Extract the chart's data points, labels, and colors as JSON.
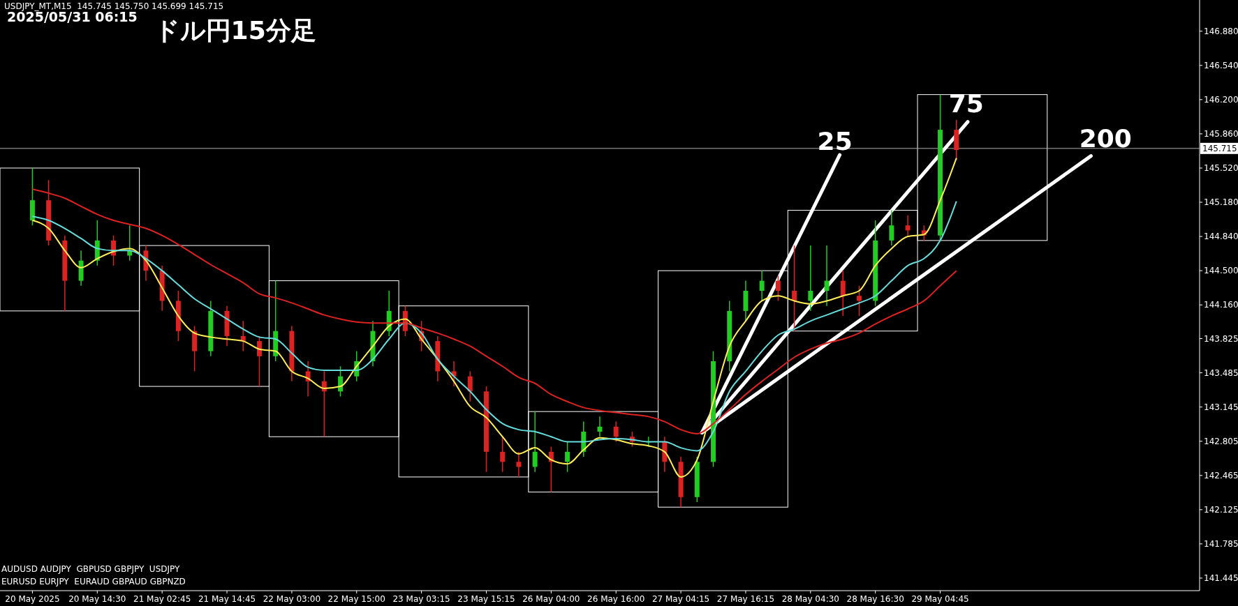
{
  "chart_data": {
    "type": "candlestick",
    "title": "ドル円15分足",
    "categories": [
      "20 May 2025",
      null,
      null,
      null,
      "20 May 14:30",
      null,
      null,
      null,
      "21 May 02:45",
      null,
      null,
      null,
      "21 May 14:45",
      null,
      null,
      null,
      "22 May 03:00",
      null,
      null,
      null,
      "22 May 15:00",
      null,
      null,
      null,
      "23 May 03:15",
      null,
      null,
      null,
      "23 May 15:15",
      null,
      null,
      null,
      "26 May 04:00",
      null,
      null,
      null,
      "26 May 16:00",
      null,
      null,
      null,
      "27 May 04:15",
      null,
      null,
      null,
      "27 May 16:15",
      null,
      null,
      null,
      "28 May 04:30",
      null,
      null,
      null,
      "28 May 16:30",
      null,
      null,
      null,
      "29 May 04:45",
      null
    ],
    "ohlc": [
      [
        145.0,
        145.52,
        144.95,
        145.2
      ],
      [
        145.2,
        145.4,
        144.75,
        144.8
      ],
      [
        144.8,
        144.85,
        144.1,
        144.4
      ],
      [
        144.4,
        144.7,
        144.35,
        144.6
      ],
      [
        144.6,
        145.0,
        144.55,
        144.8
      ],
      [
        144.8,
        144.85,
        144.55,
        144.65
      ],
      [
        144.65,
        144.95,
        144.6,
        144.7
      ],
      [
        144.7,
        144.75,
        144.4,
        144.5
      ],
      [
        144.5,
        144.55,
        144.1,
        144.2
      ],
      [
        144.2,
        144.3,
        143.8,
        143.9
      ],
      [
        143.9,
        143.95,
        143.5,
        143.7
      ],
      [
        143.7,
        144.2,
        143.65,
        144.1
      ],
      [
        144.1,
        144.15,
        143.75,
        143.85
      ],
      [
        143.85,
        144.0,
        143.7,
        143.8
      ],
      [
        143.8,
        143.85,
        143.35,
        143.65
      ],
      [
        143.65,
        144.4,
        143.6,
        143.9
      ],
      [
        143.9,
        143.95,
        143.4,
        143.5
      ],
      [
        143.5,
        143.6,
        143.25,
        143.4
      ],
      [
        143.4,
        143.5,
        142.85,
        143.3
      ],
      [
        143.3,
        143.55,
        143.25,
        143.45
      ],
      [
        143.45,
        143.7,
        143.4,
        143.6
      ],
      [
        143.6,
        144.0,
        143.55,
        143.9
      ],
      [
        143.9,
        144.3,
        143.85,
        144.1
      ],
      [
        144.1,
        144.15,
        143.85,
        143.9
      ],
      [
        143.9,
        144.0,
        143.7,
        143.8
      ],
      [
        143.8,
        143.85,
        143.4,
        143.5
      ],
      [
        143.5,
        143.6,
        143.35,
        143.45
      ],
      [
        143.45,
        143.5,
        143.2,
        143.3
      ],
      [
        143.3,
        143.35,
        142.5,
        142.7
      ],
      [
        142.7,
        142.85,
        142.5,
        142.6
      ],
      [
        142.6,
        142.7,
        142.45,
        142.55
      ],
      [
        142.55,
        143.1,
        142.5,
        142.7
      ],
      [
        142.7,
        142.75,
        142.3,
        142.6
      ],
      [
        142.6,
        142.8,
        142.5,
        142.7
      ],
      [
        142.7,
        143.0,
        142.65,
        142.9
      ],
      [
        142.9,
        143.05,
        142.85,
        142.95
      ],
      [
        142.95,
        143.0,
        142.8,
        142.85
      ],
      [
        142.85,
        142.9,
        142.75,
        142.8
      ],
      [
        142.8,
        142.85,
        142.75,
        142.8
      ],
      [
        142.8,
        142.85,
        142.5,
        142.6
      ],
      [
        142.6,
        142.65,
        142.15,
        142.25
      ],
      [
        142.25,
        142.65,
        142.2,
        142.6
      ],
      [
        142.6,
        143.7,
        142.55,
        143.6
      ],
      [
        143.6,
        144.2,
        143.5,
        144.1
      ],
      [
        144.1,
        144.4,
        144.0,
        144.3
      ],
      [
        144.3,
        144.5,
        144.2,
        144.4
      ],
      [
        144.4,
        144.45,
        144.2,
        144.3
      ],
      [
        144.3,
        144.75,
        143.9,
        144.2
      ],
      [
        144.2,
        144.75,
        144.1,
        144.3
      ],
      [
        144.3,
        144.75,
        144.15,
        144.4
      ],
      [
        144.4,
        144.5,
        144.05,
        144.25
      ],
      [
        144.25,
        144.35,
        144.05,
        144.2
      ],
      [
        144.2,
        145.0,
        144.15,
        144.8
      ],
      [
        144.8,
        145.1,
        144.75,
        144.95
      ],
      [
        144.95,
        145.05,
        144.85,
        144.9
      ],
      [
        144.9,
        144.95,
        144.8,
        144.85
      ],
      [
        144.85,
        146.25,
        144.8,
        145.9
      ],
      [
        145.9,
        146.0,
        145.6,
        145.7
      ]
    ],
    "series": [
      {
        "type": "line",
        "color": "#ffee55",
        "values": [
          145.0,
          144.92,
          144.7,
          144.53,
          144.62,
          144.69,
          144.72,
          144.6,
          144.33,
          144.05,
          143.88,
          143.84,
          143.82,
          143.8,
          143.72,
          143.7,
          143.5,
          143.43,
          143.33,
          143.35,
          143.55,
          143.75,
          143.95,
          144.02,
          143.82,
          143.62,
          143.4,
          143.15,
          143.04,
          142.85,
          142.68,
          142.74,
          142.62,
          142.58,
          142.72,
          142.84,
          142.82,
          142.78,
          142.76,
          142.7,
          142.45,
          142.62,
          143.2,
          143.75,
          144.0,
          144.2,
          144.25,
          144.2,
          144.17,
          144.2,
          144.25,
          144.3,
          144.55,
          144.72,
          144.84,
          144.86,
          145.2,
          145.62
        ]
      },
      {
        "type": "line",
        "color": "#66dddd",
        "values": [
          145.04,
          145.0,
          144.92,
          144.82,
          144.72,
          144.7,
          144.7,
          144.62,
          144.5,
          144.36,
          144.22,
          144.12,
          144.02,
          143.92,
          143.84,
          143.82,
          143.68,
          143.54,
          143.51,
          143.51,
          143.51,
          143.62,
          143.82,
          143.98,
          143.88,
          143.62,
          143.45,
          143.3,
          143.12,
          142.98,
          142.92,
          142.9,
          142.85,
          142.8,
          142.8,
          142.82,
          142.83,
          142.82,
          142.8,
          142.8,
          142.74,
          142.71,
          142.9,
          143.3,
          143.5,
          143.7,
          143.86,
          143.92,
          144.0,
          144.06,
          144.12,
          144.18,
          144.25,
          144.4,
          144.55,
          144.62,
          144.8,
          145.19
        ]
      },
      {
        "type": "line",
        "color": "#dd2222",
        "values": [
          145.31,
          145.27,
          145.22,
          145.14,
          145.06,
          145.0,
          144.96,
          144.92,
          144.85,
          144.76,
          144.66,
          144.56,
          144.47,
          144.38,
          144.27,
          144.23,
          144.18,
          144.12,
          144.06,
          144.02,
          143.99,
          143.98,
          143.98,
          143.98,
          143.93,
          143.88,
          143.82,
          143.75,
          143.65,
          143.55,
          143.44,
          143.38,
          143.27,
          143.2,
          143.14,
          143.11,
          143.09,
          143.07,
          143.05,
          143.0,
          142.92,
          142.88,
          142.98,
          143.12,
          143.27,
          143.4,
          143.52,
          143.64,
          143.72,
          143.78,
          143.82,
          143.88,
          143.97,
          144.05,
          144.12,
          144.2,
          144.35,
          144.5
        ]
      }
    ],
    "ylim": [
      141.32,
      147.19
    ],
    "yticks": [
      141.445,
      141.785,
      142.125,
      142.465,
      142.805,
      143.145,
      143.485,
      143.825,
      {
        "value": 144.16,
        "label": "144.160"
      },
      {
        "value": 144.5,
        "label": "144.500"
      },
      {
        "value": 144.84,
        "label": "144.840"
      },
      {
        "value": 145.18,
        "label": "145.180"
      },
      {
        "value": 145.52,
        "label": "145.520"
      },
      {
        "value": 145.86,
        "label": "145.860"
      },
      {
        "value": 146.2,
        "label": "146.200"
      },
      {
        "value": 146.54,
        "label": "146.540"
      },
      {
        "value": 146.88,
        "label": "146.880"
      }
    ],
    "ref_lines": [
      {
        "axis": "y",
        "value": 145.715,
        "label": "145.715",
        "color": "#aaaaaa"
      }
    ],
    "annotations": [
      "USDJPY_MT,M15  145.745 145.750 145.699 145.715",
      "2025/05/31 06:15",
      "25",
      "75",
      "200",
      "AUDUSD AUDJPY  GBPUSD GBPJPY  USDJPY",
      "EURUSD EURJPY  EURAUD GBPAUD GBPNZD"
    ]
  }
}
